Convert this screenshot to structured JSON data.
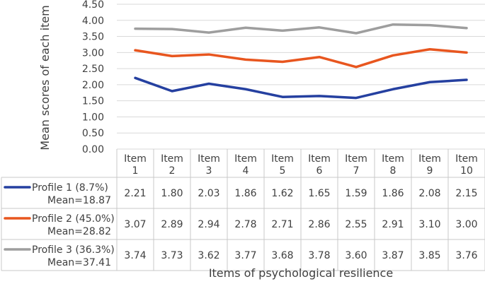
{
  "chart_data": {
    "type": "line",
    "title": "",
    "xlabel": "Items of psychological resilience",
    "ylabel": "Mean scores of each item",
    "ylim": [
      0,
      4.5
    ],
    "yticks": [
      "0.00",
      "0.50",
      "1.00",
      "1.50",
      "2.00",
      "2.50",
      "3.00",
      "3.50",
      "4.00",
      "4.50"
    ],
    "grid": true,
    "legend": "data-table",
    "categories": [
      [
        "Item",
        "1"
      ],
      [
        "Item",
        "2"
      ],
      [
        "Item",
        "3"
      ],
      [
        "Item",
        "4"
      ],
      [
        "Item",
        "5"
      ],
      [
        "Item",
        "6"
      ],
      [
        "Item",
        "7"
      ],
      [
        "Item",
        "8"
      ],
      [
        "Item",
        "9"
      ],
      [
        "Item",
        "10"
      ]
    ],
    "series": [
      {
        "name": "Profile 1 (8.7%)",
        "mean_label": "Mean=18.87",
        "color": "#2540a0",
        "values": [
          2.21,
          1.8,
          2.03,
          1.86,
          1.62,
          1.65,
          1.59,
          1.86,
          2.08,
          2.15
        ],
        "labels": [
          "2.21",
          "1.80",
          "2.03",
          "1.86",
          "1.62",
          "1.65",
          "1.59",
          "1.86",
          "2.08",
          "2.15"
        ]
      },
      {
        "name": "Profile 2 (45.0%)",
        "mean_label": "Mean=28.82",
        "color": "#e8561f",
        "values": [
          3.07,
          2.89,
          2.94,
          2.78,
          2.71,
          2.86,
          2.55,
          2.91,
          3.1,
          3.0
        ],
        "labels": [
          "3.07",
          "2.89",
          "2.94",
          "2.78",
          "2.71",
          "2.86",
          "2.55",
          "2.91",
          "3.10",
          "3.00"
        ]
      },
      {
        "name": "Profile 3 (36.3%)",
        "mean_label": "Mean=37.41",
        "color": "#9e9e9e",
        "values": [
          3.74,
          3.73,
          3.62,
          3.77,
          3.68,
          3.78,
          3.6,
          3.87,
          3.85,
          3.76
        ],
        "labels": [
          "3.74",
          "3.73",
          "3.62",
          "3.77",
          "3.68",
          "3.78",
          "3.60",
          "3.87",
          "3.85",
          "3.76"
        ]
      }
    ]
  }
}
